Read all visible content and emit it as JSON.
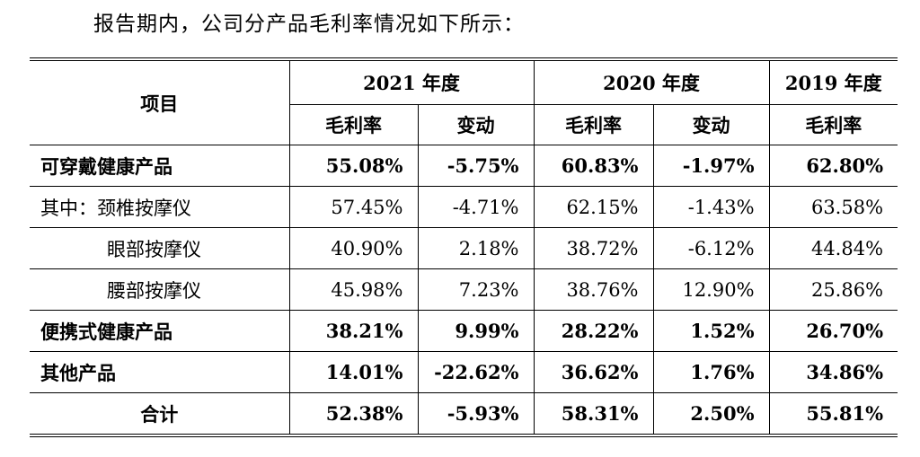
{
  "intro_text": "报告期内，公司分产品毛利率情况如下所示：",
  "table": {
    "item_header": "项目",
    "years": [
      "2021 年度",
      "2020 年度",
      "2019 年度"
    ],
    "subheaders": [
      "毛利率",
      "变动",
      "毛利率",
      "变动",
      "毛利率"
    ],
    "rows": [
      {
        "name": "可穿戴健康产品",
        "values": [
          "55.08%",
          "-5.75%",
          "60.83%",
          "-1.97%",
          "62.80%"
        ]
      },
      {
        "name": "其中：颈椎按摩仪",
        "values": [
          "57.45%",
          "-4.71%",
          "62.15%",
          "-1.43%",
          "63.58%"
        ]
      },
      {
        "name": "眼部按摩仪",
        "values": [
          "40.90%",
          "2.18%",
          "38.72%",
          "-6.12%",
          "44.84%"
        ]
      },
      {
        "name": "腰部按摩仪",
        "values": [
          "45.98%",
          "7.23%",
          "38.76%",
          "12.90%",
          "25.86%"
        ]
      },
      {
        "name": "便携式健康产品",
        "values": [
          "38.21%",
          "9.99%",
          "28.22%",
          "1.52%",
          "26.70%"
        ]
      },
      {
        "name": "其他产品",
        "values": [
          "14.01%",
          "-22.62%",
          "36.62%",
          "1.76%",
          "34.86%"
        ]
      },
      {
        "name": "合计",
        "values": [
          "52.38%",
          "-5.93%",
          "58.31%",
          "2.50%",
          "55.81%"
        ]
      }
    ]
  }
}
